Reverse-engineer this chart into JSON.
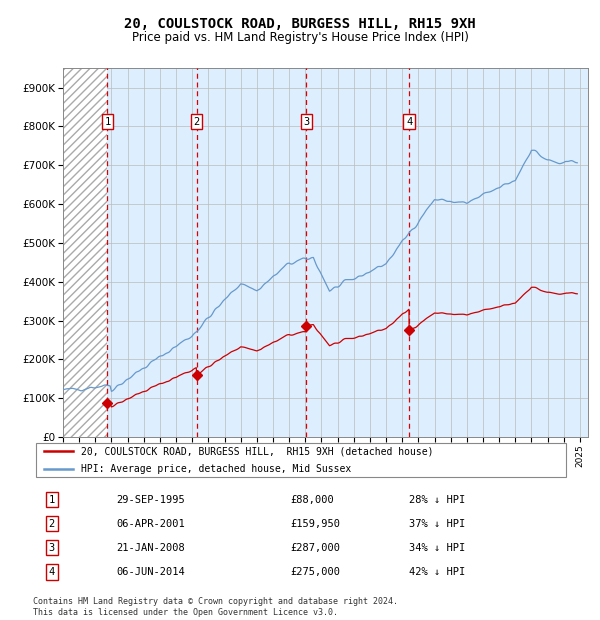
{
  "title": "20, COULSTOCK ROAD, BURGESS HILL, RH15 9XH",
  "subtitle": "Price paid vs. HM Land Registry's House Price Index (HPI)",
  "hpi_line_color": "#6699cc",
  "hpi_fill_color": "#ddeeff",
  "price_line_color": "#cc0000",
  "price_marker_color": "#cc0000",
  "dashed_line_color": "#dd0000",
  "ylim": [
    0,
    950000
  ],
  "yticks": [
    0,
    100000,
    200000,
    300000,
    400000,
    500000,
    600000,
    700000,
    800000,
    900000
  ],
  "ytick_labels": [
    "£0",
    "£100K",
    "£200K",
    "£300K",
    "£400K",
    "£500K",
    "£600K",
    "£700K",
    "£800K",
    "£900K"
  ],
  "xlim_start": 1993.0,
  "xlim_end": 2025.5,
  "xticks": [
    1993,
    1994,
    1995,
    1996,
    1997,
    1998,
    1999,
    2000,
    2001,
    2002,
    2003,
    2004,
    2005,
    2006,
    2007,
    2008,
    2009,
    2010,
    2011,
    2012,
    2013,
    2014,
    2015,
    2016,
    2017,
    2018,
    2019,
    2020,
    2021,
    2022,
    2023,
    2024,
    2025
  ],
  "purchases": [
    {
      "label": "1",
      "date_num": 1995.75,
      "price": 88000,
      "date_str": "29-SEP-1995",
      "price_str": "£88,000",
      "pct": "28% ↓ HPI"
    },
    {
      "label": "2",
      "date_num": 2001.27,
      "price": 159950,
      "date_str": "06-APR-2001",
      "price_str": "£159,950",
      "pct": "37% ↓ HPI"
    },
    {
      "label": "3",
      "date_num": 2008.07,
      "price": 287000,
      "date_str": "21-JAN-2008",
      "price_str": "£287,000",
      "pct": "34% ↓ HPI"
    },
    {
      "label": "4",
      "date_num": 2014.43,
      "price": 275000,
      "date_str": "06-JUN-2014",
      "price_str": "£275,000",
      "pct": "42% ↓ HPI"
    }
  ],
  "legend_label_red": "20, COULSTOCK ROAD, BURGESS HILL,  RH15 9XH (detached house)",
  "legend_label_blue": "HPI: Average price, detached house, Mid Sussex",
  "footer": "Contains HM Land Registry data © Crown copyright and database right 2024.\nThis data is licensed under the Open Government Licence v3.0."
}
